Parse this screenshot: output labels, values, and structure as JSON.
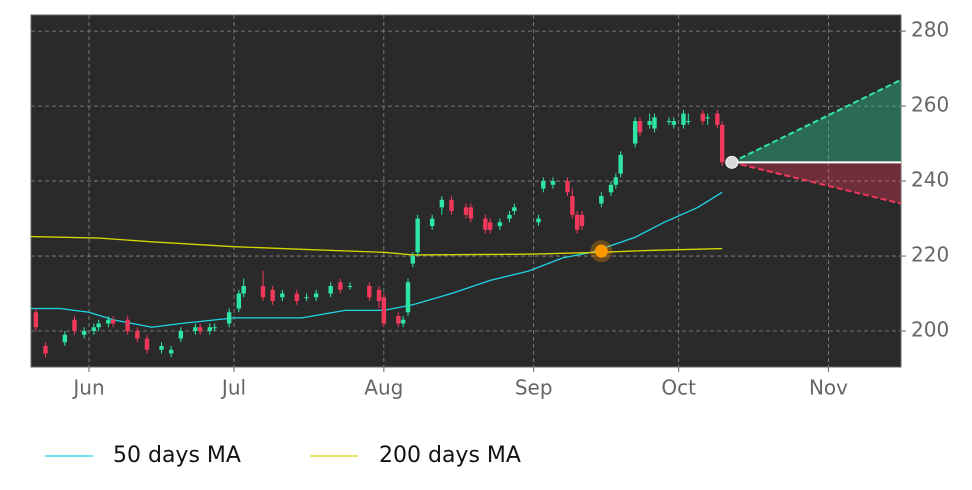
{
  "chart_data": {
    "type": "candlestick",
    "x": [
      141,
      143,
      147,
      149,
      151,
      153,
      154,
      156,
      157,
      160,
      162,
      164,
      167,
      169,
      171,
      174,
      175,
      177,
      178,
      181,
      183,
      184,
      188,
      190,
      192,
      195,
      197,
      199,
      202,
      204,
      206,
      210,
      212,
      213,
      216,
      217,
      218,
      219,
      220,
      223,
      225,
      227,
      230,
      231,
      234,
      235,
      237,
      239,
      240,
      245,
      246,
      248,
      251,
      252,
      253,
      254,
      258,
      260,
      261,
      262,
      265,
      266,
      268,
      269,
      272,
      273,
      275,
      276,
      279,
      280,
      282,
      283
    ],
    "open": [
      205,
      196,
      197,
      203,
      199,
      200,
      201,
      202,
      203,
      203,
      200,
      198,
      195,
      194,
      198,
      200,
      201,
      200,
      201,
      202,
      206,
      210,
      212,
      211,
      209,
      210,
      209,
      209,
      210,
      213,
      212,
      212,
      211,
      209,
      204,
      202,
      205,
      218,
      221,
      228,
      233,
      235,
      233,
      233,
      230,
      229,
      228,
      230,
      232,
      229,
      238,
      239,
      240,
      236,
      231,
      231,
      234,
      237,
      239,
      242,
      250,
      256,
      255,
      254,
      256,
      255,
      255,
      256,
      258,
      257,
      258,
      255
    ],
    "high": [
      206,
      197,
      200,
      204,
      201,
      202,
      203,
      204,
      204,
      204,
      201,
      199,
      197,
      196,
      201,
      202,
      202,
      202,
      202,
      206,
      211,
      214,
      216,
      212,
      211,
      211,
      210,
      211,
      213,
      214,
      213,
      213,
      212,
      210,
      205,
      204,
      214,
      221,
      231,
      231,
      236,
      236,
      234,
      234,
      231,
      230,
      230,
      232,
      234,
      231,
      241,
      241,
      241,
      238,
      232,
      232,
      237,
      240,
      242,
      248,
      257,
      257,
      258,
      258,
      257,
      257,
      259,
      258,
      259,
      258,
      259,
      256
    ],
    "low": [
      200,
      193,
      196,
      199,
      198,
      199,
      200,
      201,
      201,
      199,
      197,
      194,
      194,
      193,
      197,
      199,
      199,
      199,
      200,
      201,
      205,
      209,
      208,
      207,
      208,
      207,
      208,
      208,
      209,
      210,
      211,
      208,
      206,
      201,
      201,
      201,
      204,
      217,
      220,
      227,
      231,
      231,
      230,
      229,
      226,
      226,
      227,
      229,
      231,
      228,
      237,
      238,
      236,
      230,
      226,
      227,
      233,
      236,
      238,
      241,
      249,
      252,
      254,
      253,
      255,
      254,
      254,
      255,
      255,
      255,
      254,
      244
    ],
    "close": [
      201,
      194,
      199,
      200,
      200,
      201,
      202,
      203,
      202,
      200,
      198,
      195,
      196,
      195,
      200,
      201,
      200,
      201,
      201,
      205,
      210,
      212,
      209,
      208,
      210,
      208,
      209,
      210,
      212,
      211,
      212,
      209,
      208,
      202,
      202,
      203,
      213,
      220,
      230,
      230,
      235,
      232,
      231,
      230,
      227,
      227,
      229,
      231,
      233,
      230,
      240,
      240,
      237,
      231,
      227,
      228,
      236,
      239,
      241,
      247,
      256,
      253,
      256,
      257,
      256,
      256,
      258,
      256,
      256,
      257,
      255,
      245
    ],
    "up_color": "#2ee6a3",
    "down_color": "#f0385a",
    "series": [
      {
        "name": "50 days MA",
        "color": "#1fd6e6",
        "x": [
          140,
          146,
          152,
          157,
          165,
          171,
          182,
          196,
          205,
          213,
          219,
          227,
          235,
          243,
          250,
          256,
          265,
          271,
          278,
          283
        ],
        "values": [
          206,
          206,
          205,
          203,
          201,
          202,
          203.5,
          203.5,
          205.5,
          205.5,
          207,
          210,
          213.5,
          216,
          219.5,
          221,
          225,
          229,
          233,
          237
        ]
      },
      {
        "name": "200 days MA",
        "color": "#d6d600",
        "x": [
          140,
          154,
          165,
          182,
          196,
          213,
          219,
          243,
          258,
          268,
          283
        ],
        "values": [
          225.2,
          224.8,
          223.8,
          222.5,
          221.8,
          221,
          220.3,
          220.5,
          221,
          221.5,
          222
        ]
      }
    ],
    "projection": {
      "start": [
        285,
        245
      ],
      "upper_end": [
        320,
        267
      ],
      "lower_end": [
        320,
        234
      ],
      "up_color": "#2ee6a3",
      "down_color": "#f0385a",
      "dot_color": "#d9d9d9"
    },
    "marker": {
      "x": 258,
      "value": 221.3,
      "color": "#ff9900"
    },
    "xlim": [
      140,
      320
    ],
    "ylim": [
      190.4,
      284.3
    ],
    "xticks": [
      {
        "value": 152,
        "label": "Jun"
      },
      {
        "value": 182,
        "label": "Jul"
      },
      {
        "value": 213,
        "label": "Aug"
      },
      {
        "value": 244,
        "label": "Sep"
      },
      {
        "value": 274,
        "label": "Oct"
      },
      {
        "value": 305,
        "label": "Nov"
      }
    ],
    "yticks": [
      200,
      220,
      240,
      260,
      280
    ],
    "grid": true
  }
}
